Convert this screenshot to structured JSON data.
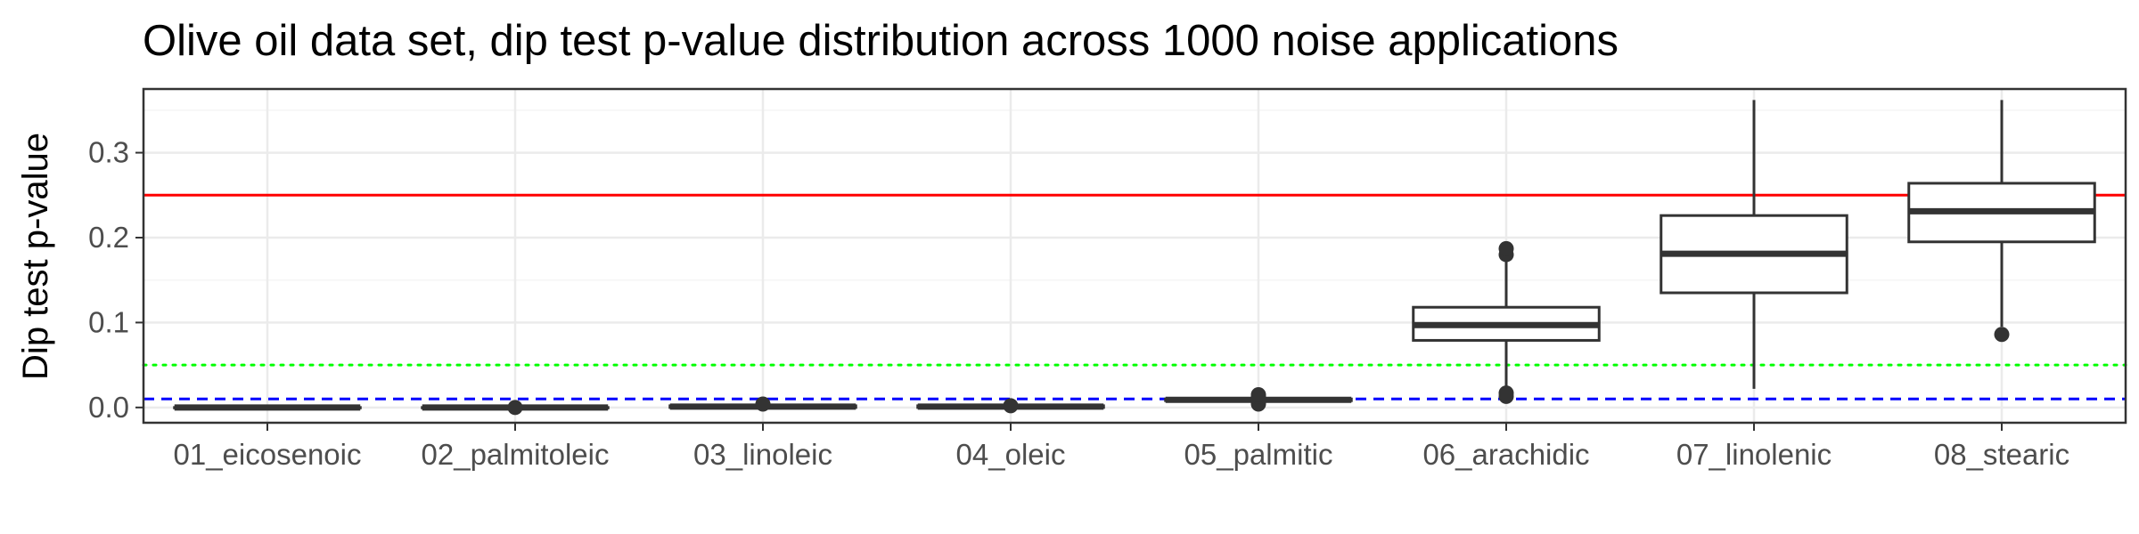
{
  "chart_data": {
    "type": "boxplot",
    "title": "Olive oil data set, dip test p-value distribution across 1000 noise applications",
    "xlabel": "",
    "ylabel": "Dip test p-value",
    "ylim": [
      -0.018,
      0.375
    ],
    "yticks": [
      0.0,
      0.1,
      0.2,
      0.3
    ],
    "ytick_labels": [
      "0.0",
      "0.1",
      "0.2",
      "0.3"
    ],
    "grid": true,
    "categories": [
      "01_eicosenoic",
      "02_palmitoleic",
      "03_linoleic",
      "04_oleic",
      "05_palmitic",
      "06_arachidic",
      "07_linolenic",
      "08_stearic"
    ],
    "boxes": [
      {
        "category": "01_eicosenoic",
        "whisker_low": 0.0,
        "q1": 0.0,
        "median": 0.0,
        "q3": 0.0,
        "whisker_high": 0.0,
        "outliers": []
      },
      {
        "category": "02_palmitoleic",
        "whisker_low": 0.0,
        "q1": 0.0,
        "median": 0.0,
        "q3": 0.0,
        "whisker_high": 0.0,
        "outliers": [
          0.0
        ]
      },
      {
        "category": "03_linoleic",
        "whisker_low": 0.0,
        "q1": 0.0,
        "median": 0.001,
        "q3": 0.002,
        "whisker_high": 0.003,
        "outliers": [
          0.004
        ]
      },
      {
        "category": "04_oleic",
        "whisker_low": 0.0,
        "q1": 0.0,
        "median": 0.001,
        "q3": 0.002,
        "whisker_high": 0.003,
        "outliers": [
          0.002
        ]
      },
      {
        "category": "05_palmitic",
        "whisker_low": 0.007,
        "q1": 0.008,
        "median": 0.009,
        "q3": 0.01,
        "whisker_high": 0.011,
        "outliers": [
          0.004,
          0.006,
          0.013,
          0.015
        ]
      },
      {
        "category": "06_arachidic",
        "whisker_low": 0.02,
        "q1": 0.079,
        "median": 0.097,
        "q3": 0.118,
        "whisker_high": 0.175,
        "outliers": [
          0.013,
          0.017,
          0.18,
          0.187
        ]
      },
      {
        "category": "07_linolenic",
        "whisker_low": 0.022,
        "q1": 0.135,
        "median": 0.181,
        "q3": 0.226,
        "whisker_high": 0.362,
        "outliers": []
      },
      {
        "category": "08_stearic",
        "whisker_low": 0.095,
        "q1": 0.195,
        "median": 0.231,
        "q3": 0.264,
        "whisker_high": 0.362,
        "outliers": [
          0.086
        ]
      }
    ],
    "reference_lines": [
      {
        "y": 0.25,
        "color": "#ff0000",
        "style": "solid"
      },
      {
        "y": 0.05,
        "color": "#00ff00",
        "style": "dotted"
      },
      {
        "y": 0.01,
        "color": "#0000ff",
        "style": "dashed"
      }
    ],
    "colors": {
      "box_stroke": "#333333",
      "box_fill": "#ffffff",
      "grid_major": "#ebebeb",
      "grid_minor": "#f5f5f5",
      "panel_border": "#333333",
      "tick_text": "#4d4d4d"
    }
  }
}
